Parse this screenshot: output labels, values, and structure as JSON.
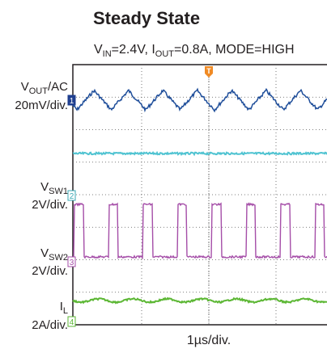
{
  "title": "Steady State",
  "subtitle": [
    "V",
    "IN",
    "=2.4V, I",
    "OUT",
    "=0.8A, MODE=HIGH"
  ],
  "labels": [
    {
      "name": [
        "V",
        "OUT",
        "/AC"
      ],
      "scale": "20mV/div."
    },
    {
      "name": [
        "V",
        "SW1",
        ""
      ],
      "scale": "2V/div."
    },
    {
      "name": [
        "V",
        "SW2",
        ""
      ],
      "scale": "2V/div."
    },
    {
      "name": [
        "I",
        "L",
        ""
      ],
      "scale": "2A/div."
    }
  ],
  "markers": [
    "1",
    "2",
    "3",
    "4"
  ],
  "trigger": "T",
  "timebase": "1µs/div."
}
